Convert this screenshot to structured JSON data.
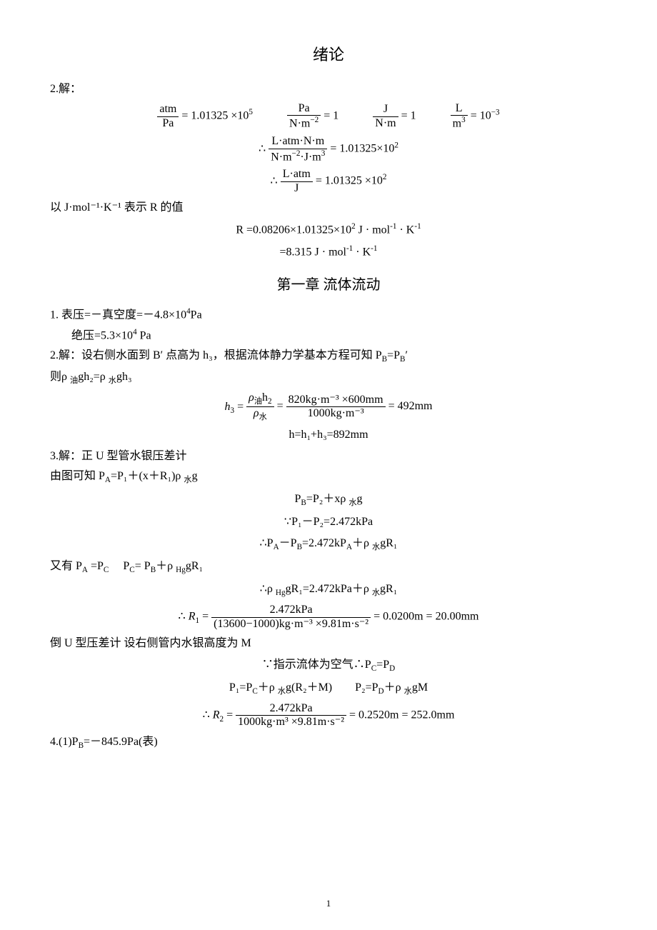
{
  "title": "绪论",
  "p2": {
    "label": "2.解：",
    "row1": {
      "e1": {
        "num": "atm",
        "den": "Pa",
        "rhs": "= 1.01325 ×10",
        "rhs_sup": "5"
      },
      "e2": {
        "num": "Pa",
        "den": "N·m",
        "den_sup": "−2",
        "rhs": "= 1"
      },
      "e3": {
        "num": "J",
        "den": "N·m",
        "rhs": "= 1"
      },
      "e4": {
        "num": "L",
        "den": "m",
        "den_sup": "3",
        "rhs": "= 10",
        "rhs_sup": "−3"
      }
    },
    "row2": {
      "pre": "∴",
      "num": "L·atm·N·m",
      "den_a": "N·m",
      "den_a_sup": "−2",
      "den_b": "·J·m",
      "den_b_sup": "3",
      "rhs": "= 1.01325×10",
      "rhs_sup": "2"
    },
    "row3": {
      "pre": "∴",
      "num": "L·atm",
      "den": "J",
      "rhs": "= 1.01325 ×10",
      "rhs_sup": "2"
    }
  },
  "r_line": "以 J·mol⁻¹·K⁻¹ 表示 R 的值",
  "r_eq1_a": "R =0.08206×1.01325×10",
  "r_eq1_a_sup": "2",
  "r_eq1_b": " J · mol",
  "r_eq1_b_sup": "-1",
  "r_eq1_c": " · K",
  "r_eq1_c_sup": "-1",
  "r_eq2_a": "=8.315 J · mol",
  "r_eq2_a_sup": "-1",
  "r_eq2_b": " · K",
  "r_eq2_b_sup": "-1",
  "chapter1": "第一章  流体流动",
  "q1_a": "1.  表压=－真空度=－4.8×10",
  "q1_a_sup": "4",
  "q1_a_tail": "Pa",
  "q1_b_pre": "绝压=5.3×10",
  "q1_b_sup": "4",
  "q1_b_tail": " Pa",
  "q2_a": "2.解：设右侧水面到 B′ 点高为 h₃，根据流体静力学基本方程可知 P",
  "q2_a_sub1": "B",
  "q2_a_mid": "=P",
  "q2_a_sub2": "B",
  "q2_a_tail": "′",
  "q2_b": "则ρ ",
  "q2_b_sub1": "油",
  "q2_b_mid": "gh₂=ρ ",
  "q2_b_sub2": "水",
  "q2_b_tail": "gh₃",
  "h3_eq": {
    "lhs": "h",
    "lhs_sub": "3",
    "eq": " = ",
    "f1_num_a": "ρ",
    "f1_num_sub": "油",
    "f1_num_b": "h",
    "f1_num_b_sub": "2",
    "f1_den_a": "ρ",
    "f1_den_sub": "水",
    "f2_num": "820kg·m⁻³ ×600mm",
    "f2_den": "1000kg·m⁻³",
    "rhs": " = 492mm"
  },
  "h_sum": "h=h₁+h₃=892mm",
  "q3_a": "3.解：正 U 型管水银压差计",
  "q3_b": "由图可知  P",
  "q3_b_sub": "A",
  "q3_b_mid": "=P₁＋(x＋R₁)ρ ",
  "q3_b_sub2": "水",
  "q3_b_tail": "g",
  "pb_eq": "P",
  "pb_sub": "B",
  "pb_mid": "=P₂＋xρ ",
  "pb_sub2": "水",
  "pb_tail": "g",
  "because1": "∵P₁－P₂=2.472kPa",
  "there1_a": "∴P",
  "there1_sub1": "A",
  "there1_b": "－P",
  "there1_sub2": "B",
  "there1_c": "=2.472kP",
  "there1_sub3": "A",
  "there1_d": "＋ρ ",
  "there1_sub4": "水",
  "there1_e": "gR₁",
  "line_pa": "又有 P",
  "line_pa_sub1": "A",
  "line_pa_mid1": " =P",
  "line_pa_sub2": "C",
  "line_pa_gap": "     P",
  "line_pa_sub3": "C",
  "line_pa_mid2": "= P",
  "line_pa_sub4": "B",
  "line_pa_mid3": "＋ρ ",
  "line_pa_sub5": "Hg",
  "line_pa_tail": "gR₁",
  "there2_a": "∴ρ ",
  "there2_sub1": "Hg",
  "there2_b": "gR₁=2.472kPa＋ρ ",
  "there2_sub2": "水",
  "there2_c": "gR₁",
  "r1_eq": {
    "pre": "∴ ",
    "lhs": "R",
    "lhs_sub": "1",
    "eq": " = ",
    "num": "2.472kPa",
    "den": "(13600−1000)kg·m⁻³ ×9.81m·s⁻²",
    "rhs": " = 0.0200m = 20.00mm"
  },
  "inv_u": "倒 U 型压差计  设右侧管内水银高度为 M",
  "because2": "∵指示流体为空气∴P",
  "because2_sub1": "C",
  "because2_mid": "=P",
  "because2_sub2": "D",
  "p1p2_a": "P₁=P",
  "p1p2_sub1": "C",
  "p1p2_b": "＋ρ ",
  "p1p2_sub2": "水",
  "p1p2_c": "g(R₂＋M)        P₂=P",
  "p1p2_sub3": "D",
  "p1p2_d": "＋ρ ",
  "p1p2_sub4": "水",
  "p1p2_e": "gM",
  "r2_eq": {
    "pre": "∴ ",
    "lhs": "R",
    "lhs_sub": "2",
    "eq": " = ",
    "num": "2.472kPa",
    "den": "1000kg·m³ ×9.81m·s⁻²",
    "rhs": " = 0.2520m = 252.0mm"
  },
  "q4": "4.(1)P",
  "q4_sub": "B",
  "q4_tail": "=－845.9Pa(表)",
  "pagenum": "1"
}
